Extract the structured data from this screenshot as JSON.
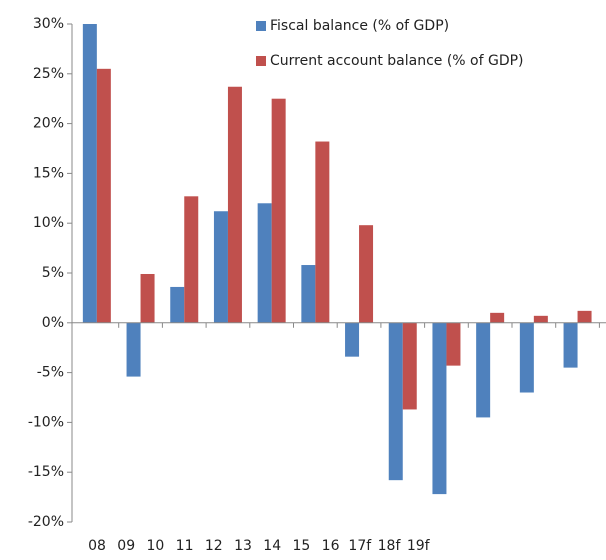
{
  "chart_data": {
    "type": "bar",
    "categories": [
      "08",
      "09",
      "10",
      "11",
      "12",
      "13",
      "14",
      "15",
      "16",
      "17f",
      "18f",
      "19f"
    ],
    "series": [
      {
        "name": "Fiscal balance (% of GDP)",
        "color": "#4f81bd",
        "values": [
          30,
          -5.4,
          3.6,
          11.2,
          12,
          5.8,
          -3.4,
          -15.8,
          -17.2,
          -9.5,
          -7.0,
          -4.5
        ]
      },
      {
        "name": "Current account balance (% of GDP)",
        "color": "#c0504d",
        "values": [
          25.5,
          4.9,
          12.7,
          23.7,
          22.5,
          18.2,
          9.8,
          -8.7,
          -4.3,
          1.0,
          0.7,
          1.2
        ]
      }
    ],
    "ylim": [
      -20,
      30
    ],
    "yticks": [
      {
        "value": -20,
        "label": "-20%"
      },
      {
        "value": -15,
        "label": "-15%"
      },
      {
        "value": -10,
        "label": "-10%"
      },
      {
        "value": -5,
        "label": "-5%"
      },
      {
        "value": 0,
        "label": "0%"
      },
      {
        "value": 5,
        "label": "5%"
      },
      {
        "value": 10,
        "label": "10%"
      },
      {
        "value": 15,
        "label": "15%"
      },
      {
        "value": 20,
        "label": "20%"
      },
      {
        "value": 25,
        "label": "25%"
      },
      {
        "value": 30,
        "label": "30%"
      }
    ],
    "legend": "top-right"
  }
}
